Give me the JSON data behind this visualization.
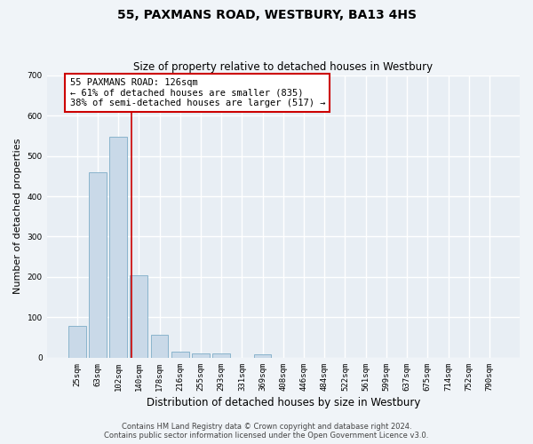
{
  "title": "55, PAXMANS ROAD, WESTBURY, BA13 4HS",
  "subtitle": "Size of property relative to detached houses in Westbury",
  "xlabel": "Distribution of detached houses by size in Westbury",
  "ylabel": "Number of detached properties",
  "footer_line1": "Contains HM Land Registry data © Crown copyright and database right 2024.",
  "footer_line2": "Contains public sector information licensed under the Open Government Licence v3.0.",
  "bar_color": "#c9d9e8",
  "bar_edge_color": "#8ab4cc",
  "background_color": "#e8eef4",
  "grid_color": "#ffffff",
  "fig_background": "#f0f4f8",
  "categories": [
    "25sqm",
    "63sqm",
    "102sqm",
    "140sqm",
    "178sqm",
    "216sqm",
    "255sqm",
    "293sqm",
    "331sqm",
    "369sqm",
    "408sqm",
    "446sqm",
    "484sqm",
    "522sqm",
    "561sqm",
    "599sqm",
    "637sqm",
    "675sqm",
    "714sqm",
    "752sqm",
    "790sqm"
  ],
  "values": [
    78,
    460,
    548,
    204,
    58,
    15,
    10,
    10,
    0,
    8,
    0,
    0,
    0,
    0,
    0,
    0,
    0,
    0,
    0,
    0,
    0
  ],
  "red_line_x": 2.63,
  "red_line_color": "#cc0000",
  "annotation_line1": "55 PAXMANS ROAD: 126sqm",
  "annotation_line2": "← 61% of detached houses are smaller (835)",
  "annotation_line3": "38% of semi-detached houses are larger (517) →",
  "annotation_box_color": "#ffffff",
  "annotation_box_edge_color": "#cc0000",
  "ylim": [
    0,
    700
  ],
  "yticks": [
    0,
    100,
    200,
    300,
    400,
    500,
    600,
    700
  ],
  "title_fontsize": 10,
  "subtitle_fontsize": 8.5,
  "ylabel_fontsize": 8,
  "xlabel_fontsize": 8.5,
  "tick_fontsize": 6.5,
  "annotation_fontsize": 7.5,
  "footer_fontsize": 6
}
